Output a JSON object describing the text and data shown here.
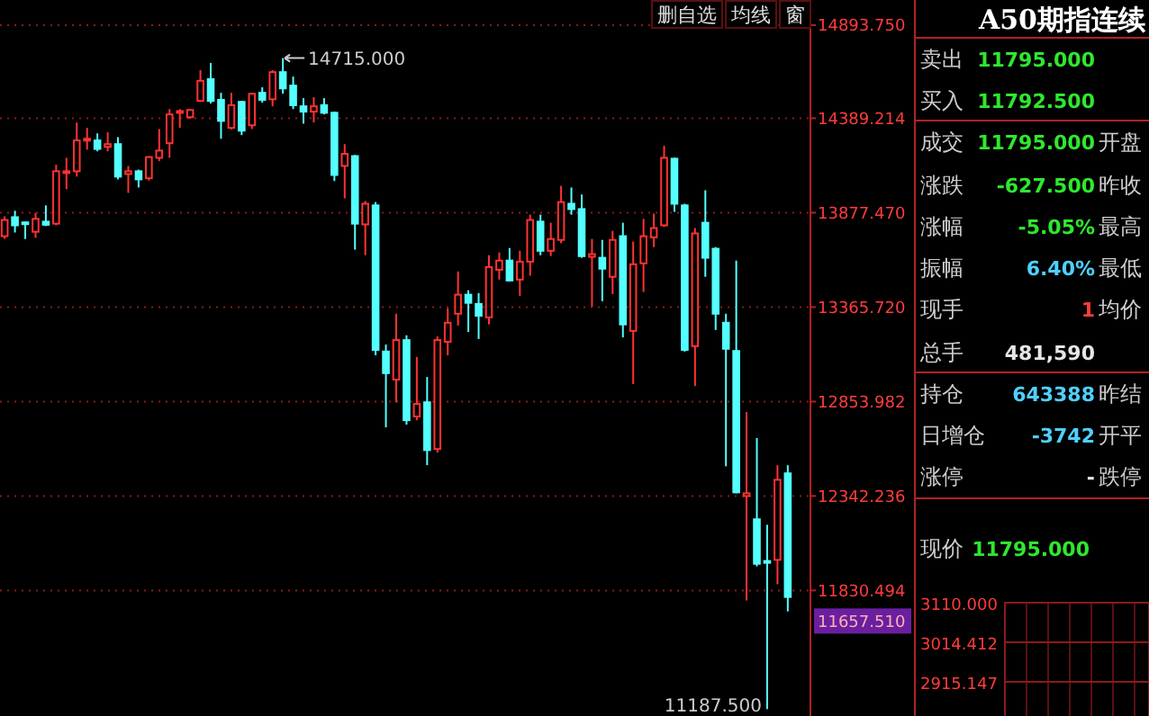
{
  "chart_data": [
    {
      "type": "candlestick",
      "categories": [
        null,
        null,
        null,
        null,
        null,
        null,
        null,
        null,
        null,
        null,
        null,
        null,
        null,
        null,
        null,
        null,
        null,
        null,
        null,
        null,
        null,
        null,
        null,
        null,
        null,
        null,
        null,
        null,
        null,
        null,
        null,
        null,
        null,
        null,
        null,
        null,
        null,
        null,
        null,
        null,
        null,
        null,
        null,
        null,
        null,
        null,
        null,
        null,
        null,
        null,
        null,
        null,
        null,
        null,
        null,
        null,
        null,
        null,
        null,
        null,
        null,
        null,
        null,
        null,
        null,
        null,
        null,
        null,
        null,
        null,
        null,
        null,
        null,
        null,
        null,
        null,
        null
      ],
      "ohlc": [
        [
          13750,
          13858,
          13735,
          13838
        ],
        [
          13853,
          13888,
          13770,
          13809
        ],
        [
          13825,
          13829,
          13735,
          13820
        ],
        [
          13774,
          13876,
          13741,
          13844
        ],
        [
          13829,
          13917,
          13805,
          13812
        ],
        [
          13818,
          14137,
          13809,
          14102
        ],
        [
          14093,
          14175,
          14005,
          14102
        ],
        [
          14102,
          14366,
          14073,
          14269
        ],
        [
          14269,
          14337,
          14219,
          14278
        ],
        [
          14269,
          14307,
          14210,
          14223
        ],
        [
          14234,
          14313,
          14210,
          14249
        ],
        [
          14249,
          14287,
          14058,
          14073
        ],
        [
          14087,
          14131,
          13985,
          14102
        ],
        [
          14102,
          14111,
          14014,
          14058
        ],
        [
          14064,
          14184,
          14052,
          14179
        ],
        [
          14175,
          14331,
          14157,
          14214
        ],
        [
          14254,
          14439,
          14175,
          14410
        ],
        [
          14419,
          14439,
          14337,
          14428
        ],
        [
          14395,
          14439,
          14386,
          14434
        ],
        [
          14483,
          14650,
          14478,
          14592
        ],
        [
          14601,
          14689,
          14469,
          14483
        ],
        [
          14489,
          14527,
          14278,
          14375
        ],
        [
          14337,
          14527,
          14328,
          14460
        ],
        [
          14478,
          14483,
          14298,
          14322
        ],
        [
          14351,
          14527,
          14331,
          14522
        ],
        [
          14527,
          14557,
          14474,
          14489
        ],
        [
          14492,
          14650,
          14454,
          14639
        ],
        [
          14639,
          14715,
          14522,
          14551
        ],
        [
          14566,
          14615,
          14439,
          14460
        ],
        [
          14454,
          14498,
          14360,
          14425
        ],
        [
          14425,
          14504,
          14366,
          14454
        ],
        [
          14460,
          14498,
          14410,
          14419
        ],
        [
          14419,
          14425,
          14049,
          14082
        ],
        [
          14131,
          14249,
          13955,
          14196
        ],
        [
          14184,
          14190,
          13677,
          13818
        ],
        [
          13814,
          13941,
          13647,
          13926
        ],
        [
          13917,
          13935,
          13105,
          13134
        ],
        [
          13125,
          13163,
          12714,
          13008
        ],
        [
          12973,
          13330,
          12850,
          13187
        ],
        [
          13187,
          13213,
          12729,
          12753
        ],
        [
          12773,
          13096,
          12753,
          12841
        ],
        [
          12850,
          12987,
          12509,
          12591
        ],
        [
          12597,
          13207,
          12577,
          13187
        ],
        [
          13178,
          13360,
          13105,
          13281
        ],
        [
          13330,
          13559,
          13266,
          13433
        ],
        [
          13433,
          13457,
          13231,
          13389
        ],
        [
          13383,
          13442,
          13193,
          13319
        ],
        [
          13310,
          13647,
          13272,
          13583
        ],
        [
          13568,
          13662,
          13515,
          13618
        ],
        [
          13618,
          13686,
          13506,
          13510
        ],
        [
          13515,
          13671,
          13427,
          13612
        ],
        [
          13612,
          13867,
          13536,
          13838
        ],
        [
          13829,
          13867,
          13647,
          13671
        ],
        [
          13671,
          13823,
          13642,
          13735
        ],
        [
          13730,
          14023,
          13712,
          13935
        ],
        [
          13926,
          14014,
          13867,
          13897
        ],
        [
          13897,
          13976,
          13633,
          13642
        ],
        [
          13638,
          13735,
          13369,
          13653
        ],
        [
          13633,
          13730,
          13398,
          13574
        ],
        [
          13530,
          13779,
          13436,
          13730
        ],
        [
          13750,
          13823,
          13202,
          13272
        ],
        [
          13237,
          13721,
          12949,
          13598
        ],
        [
          13603,
          13844,
          13448,
          13750
        ],
        [
          13744,
          13873,
          13691,
          13794
        ],
        [
          13809,
          14240,
          13800,
          14175
        ],
        [
          14170,
          14175,
          13882,
          13926
        ],
        [
          13917,
          13926,
          13125,
          13134
        ],
        [
          13154,
          13794,
          12938,
          13765
        ],
        [
          13823,
          13999,
          13530,
          13633
        ],
        [
          13682,
          13691,
          13242,
          13330
        ],
        [
          13281,
          13330,
          12503,
          13140
        ],
        [
          13128,
          13618,
          12357,
          12362
        ],
        [
          12342,
          12797,
          11776,
          12357
        ],
        [
          12216,
          12656,
          11961,
          11975
        ],
        [
          11990,
          12186,
          11187.5,
          11981
        ],
        [
          11996,
          12509,
          11864,
          12430
        ],
        [
          12465,
          12509,
          11717,
          11795
        ]
      ],
      "colors": [
        "#ff3232",
        "#54ffff",
        "#54ffff",
        "#ff3232",
        "#54ffff",
        "#ff3232",
        "#ff3232",
        "#ff3232",
        "#ff3232",
        "#54ffff",
        "#ff3232",
        "#54ffff",
        "#ff3232",
        "#54ffff",
        "#ff3232",
        "#ff3232",
        "#ff3232",
        "#ff3232",
        "#ff3232",
        "#ff3232",
        "#54ffff",
        "#54ffff",
        "#ff3232",
        "#54ffff",
        "#ff3232",
        "#54ffff",
        "#ff3232",
        "#54ffff",
        "#54ffff",
        "#54ffff",
        "#ff3232",
        "#54ffff",
        "#54ffff",
        "#ff3232",
        "#54ffff",
        "#ff3232",
        "#54ffff",
        "#54ffff",
        "#ff3232",
        "#54ffff",
        "#ff3232",
        "#54ffff",
        "#ff3232",
        "#ff3232",
        "#ff3232",
        "#54ffff",
        "#54ffff",
        "#ff3232",
        "#ff3232",
        "#54ffff",
        "#ff3232",
        "#ff3232",
        "#54ffff",
        "#ff3232",
        "#ff3232",
        "#54ffff",
        "#54ffff",
        "#ff3232",
        "#54ffff",
        "#ff3232",
        "#54ffff",
        "#ff3232",
        "#ff3232",
        "#ff3232",
        "#ff3232",
        "#54ffff",
        "#54ffff",
        "#ff3232",
        "#54ffff",
        "#54ffff",
        "#54ffff",
        "#54ffff",
        "#ff3232",
        "#54ffff",
        "#54ffff",
        "#ff3232",
        "#54ffff"
      ],
      "ylim": [
        11150,
        15030
      ],
      "yticks": [
        {
          "value": 14893.75,
          "label": "14893.750"
        },
        {
          "value": 14389.214,
          "label": "14389.214"
        },
        {
          "value": 13877.47,
          "label": "13877.470"
        },
        {
          "value": 13365.72,
          "label": "13365.720"
        },
        {
          "value": 12853.982,
          "label": "12853.982"
        },
        {
          "value": 12342.236,
          "label": "12342.236"
        },
        {
          "value": 11830.494,
          "label": "11830.494"
        }
      ],
      "grid": "y",
      "annotations": [
        "删自选",
        "均线",
        "窗",
        "14715.000",
        "11187.500",
        "11657.510"
      ]
    },
    {
      "type": "other",
      "title": "A50期指连续",
      "annotations": [
        "卖出",
        "11795.000",
        "买入",
        "11792.500",
        "成交",
        "11795.000",
        "开盘",
        "涨跌",
        "-627.500",
        "昨收",
        "涨幅",
        "-5.05%",
        "最高",
        "振幅",
        "6.40%",
        "最低",
        "现手",
        "1",
        "均价",
        "总手",
        "481,590",
        "持仓",
        "643388",
        "昨结",
        "日增仓",
        "-3742",
        "开平",
        "涨停",
        "-",
        "跌停",
        "现价",
        "11795.000",
        "3110.000",
        "3014.412",
        "2915.147"
      ]
    }
  ]
}
